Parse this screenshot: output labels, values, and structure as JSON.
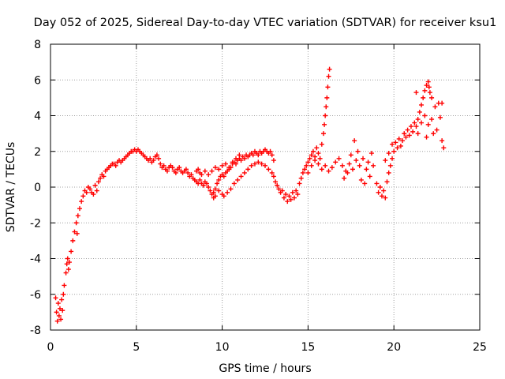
{
  "chart_data": {
    "type": "scatter",
    "title": "Day 052 of 2025, Sidereal Day-to-day VTEC variation (SDTVAR) for receiver ksu1",
    "xlabel": "GPS time / hours",
    "ylabel": "SDTVAR / TECUs",
    "xlim": [
      0,
      25
    ],
    "ylim": [
      -8,
      8
    ],
    "xticks": [
      "0",
      "5",
      "10",
      "15",
      "20",
      "25"
    ],
    "yticks": [
      "-8",
      "-6",
      "-4",
      "-2",
      "0",
      "2",
      "4",
      "6",
      "8"
    ],
    "grid": true,
    "marker": "+",
    "series": [
      {
        "name": "SDTVAR",
        "color": "#ff0000",
        "points": [
          [
            0.3,
            -6.2
          ],
          [
            0.35,
            -7.0
          ],
          [
            0.4,
            -7.5
          ],
          [
            0.45,
            -6.5
          ],
          [
            0.5,
            -7.2
          ],
          [
            0.55,
            -6.8
          ],
          [
            0.6,
            -7.4
          ],
          [
            0.65,
            -6.3
          ],
          [
            0.7,
            -6.9
          ],
          [
            0.75,
            -6.0
          ],
          [
            0.8,
            -5.5
          ],
          [
            0.9,
            -4.8
          ],
          [
            0.95,
            -4.3
          ],
          [
            1.0,
            -4.0
          ],
          [
            1.05,
            -4.6
          ],
          [
            1.1,
            -4.2
          ],
          [
            1.2,
            -3.6
          ],
          [
            1.3,
            -3.0
          ],
          [
            1.4,
            -2.5
          ],
          [
            1.5,
            -2.0
          ],
          [
            1.55,
            -2.6
          ],
          [
            1.6,
            -1.6
          ],
          [
            1.7,
            -1.2
          ],
          [
            1.8,
            -0.8
          ],
          [
            1.9,
            -0.5
          ],
          [
            2.0,
            -0.2
          ],
          [
            2.1,
            -0.3
          ],
          [
            2.2,
            0.0
          ],
          [
            2.3,
            -0.1
          ],
          [
            2.4,
            -0.3
          ],
          [
            2.5,
            -0.4
          ],
          [
            2.6,
            0.1
          ],
          [
            2.7,
            -0.2
          ],
          [
            2.8,
            0.3
          ],
          [
            2.9,
            0.5
          ],
          [
            3.0,
            0.7
          ],
          [
            3.1,
            0.6
          ],
          [
            3.2,
            0.9
          ],
          [
            3.3,
            1.0
          ],
          [
            3.4,
            1.1
          ],
          [
            3.5,
            1.2
          ],
          [
            3.6,
            1.3
          ],
          [
            3.7,
            1.3
          ],
          [
            3.8,
            1.2
          ],
          [
            3.9,
            1.4
          ],
          [
            4.0,
            1.5
          ],
          [
            4.1,
            1.4
          ],
          [
            4.2,
            1.5
          ],
          [
            4.3,
            1.6
          ],
          [
            4.4,
            1.7
          ],
          [
            4.5,
            1.8
          ],
          [
            4.6,
            1.9
          ],
          [
            4.7,
            2.0
          ],
          [
            4.8,
            2.0
          ],
          [
            4.9,
            2.1
          ],
          [
            5.0,
            2.0
          ],
          [
            5.1,
            2.1
          ],
          [
            5.2,
            2.0
          ],
          [
            5.3,
            1.9
          ],
          [
            5.4,
            1.8
          ],
          [
            5.5,
            1.7
          ],
          [
            5.6,
            1.6
          ],
          [
            5.7,
            1.5
          ],
          [
            5.8,
            1.6
          ],
          [
            5.9,
            1.4
          ],
          [
            6.0,
            1.5
          ],
          [
            6.1,
            1.7
          ],
          [
            6.2,
            1.8
          ],
          [
            6.3,
            1.6
          ],
          [
            6.4,
            1.3
          ],
          [
            6.5,
            1.1
          ],
          [
            6.6,
            1.2
          ],
          [
            6.7,
            1.0
          ],
          [
            6.8,
            0.9
          ],
          [
            6.9,
            1.1
          ],
          [
            7.0,
            1.2
          ],
          [
            7.1,
            1.1
          ],
          [
            7.2,
            0.9
          ],
          [
            7.3,
            0.8
          ],
          [
            7.4,
            1.0
          ],
          [
            7.5,
            1.1
          ],
          [
            7.6,
            0.9
          ],
          [
            7.7,
            0.8
          ],
          [
            7.8,
            0.9
          ],
          [
            7.9,
            1.0
          ],
          [
            8.0,
            0.8
          ],
          [
            8.1,
            0.6
          ],
          [
            8.2,
            0.7
          ],
          [
            8.3,
            0.5
          ],
          [
            8.4,
            0.4
          ],
          [
            8.5,
            0.3
          ],
          [
            8.6,
            0.2
          ],
          [
            8.7,
            0.4
          ],
          [
            8.8,
            0.2
          ],
          [
            8.9,
            0.1
          ],
          [
            9.0,
            0.3
          ],
          [
            9.1,
            0.2
          ],
          [
            9.2,
            0.0
          ],
          [
            9.3,
            -0.2
          ],
          [
            9.4,
            -0.4
          ],
          [
            9.5,
            -0.3
          ],
          [
            9.6,
            -0.1
          ],
          [
            9.7,
            0.2
          ],
          [
            9.8,
            0.4
          ],
          [
            9.9,
            0.6
          ],
          [
            10.0,
            0.7
          ],
          [
            10.1,
            0.6
          ],
          [
            10.2,
            0.8
          ],
          [
            10.3,
            0.9
          ],
          [
            10.4,
            1.0
          ],
          [
            10.5,
            1.1
          ],
          [
            10.6,
            1.3
          ],
          [
            10.7,
            1.4
          ],
          [
            10.8,
            1.3
          ],
          [
            10.9,
            1.5
          ],
          [
            11.0,
            1.6
          ],
          [
            11.1,
            1.5
          ],
          [
            11.2,
            1.7
          ],
          [
            11.3,
            1.6
          ],
          [
            11.4,
            1.8
          ],
          [
            11.5,
            1.7
          ],
          [
            11.6,
            1.8
          ],
          [
            11.7,
            1.9
          ],
          [
            11.8,
            1.8
          ],
          [
            11.9,
            2.0
          ],
          [
            12.0,
            1.9
          ],
          [
            12.1,
            1.8
          ],
          [
            12.2,
            2.0
          ],
          [
            12.3,
            1.9
          ],
          [
            12.4,
            2.0
          ],
          [
            12.5,
            2.1
          ],
          [
            12.6,
            2.0
          ],
          [
            12.7,
            1.9
          ],
          [
            12.8,
            2.0
          ],
          [
            12.9,
            1.8
          ],
          [
            13.0,
            1.5
          ],
          [
            9.5,
            -0.6
          ],
          [
            9.6,
            -0.5
          ],
          [
            9.8,
            -0.2
          ],
          [
            10.0,
            -0.4
          ],
          [
            10.1,
            -0.5
          ],
          [
            10.3,
            -0.3
          ],
          [
            10.5,
            -0.1
          ],
          [
            10.7,
            0.2
          ],
          [
            10.9,
            0.4
          ],
          [
            11.1,
            0.6
          ],
          [
            11.3,
            0.8
          ],
          [
            11.5,
            1.0
          ],
          [
            11.7,
            1.2
          ],
          [
            11.9,
            1.3
          ],
          [
            12.1,
            1.4
          ],
          [
            12.3,
            1.3
          ],
          [
            12.5,
            1.2
          ],
          [
            12.7,
            1.0
          ],
          [
            12.9,
            0.8
          ],
          [
            13.0,
            0.6
          ],
          [
            13.1,
            0.3
          ],
          [
            13.2,
            0.1
          ],
          [
            13.3,
            -0.1
          ],
          [
            13.4,
            -0.3
          ],
          [
            8.5,
            0.9
          ],
          [
            8.6,
            1.0
          ],
          [
            8.7,
            0.8
          ],
          [
            8.8,
            0.7
          ],
          [
            9.0,
            0.9
          ],
          [
            9.2,
            0.7
          ],
          [
            9.4,
            0.9
          ],
          [
            9.6,
            1.1
          ],
          [
            9.8,
            1.0
          ],
          [
            10.0,
            1.2
          ],
          [
            10.2,
            1.3
          ],
          [
            10.4,
            1.1
          ],
          [
            10.6,
            1.4
          ],
          [
            10.8,
            1.6
          ],
          [
            11.0,
            1.8
          ],
          [
            13.5,
            -0.2
          ],
          [
            13.6,
            -0.6
          ],
          [
            13.7,
            -0.4
          ],
          [
            13.8,
            -0.8
          ],
          [
            13.9,
            -0.5
          ],
          [
            14.0,
            -0.7
          ],
          [
            14.1,
            -0.3
          ],
          [
            14.2,
            -0.6
          ],
          [
            14.3,
            -0.2
          ],
          [
            14.4,
            -0.4
          ],
          [
            14.5,
            0.2
          ],
          [
            14.6,
            0.5
          ],
          [
            14.7,
            0.8
          ],
          [
            14.8,
            1.0
          ],
          [
            14.9,
            1.2
          ],
          [
            15.0,
            1.4
          ],
          [
            15.1,
            1.6
          ],
          [
            15.2,
            1.8
          ],
          [
            15.3,
            2.0
          ],
          [
            15.4,
            1.7
          ],
          [
            15.5,
            2.2
          ],
          [
            15.6,
            1.9
          ],
          [
            15.7,
            1.6
          ],
          [
            15.8,
            2.4
          ],
          [
            15.9,
            3.0
          ],
          [
            15.95,
            3.5
          ],
          [
            16.0,
            4.0
          ],
          [
            16.05,
            4.5
          ],
          [
            16.1,
            5.0
          ],
          [
            16.15,
            5.6
          ],
          [
            16.2,
            6.2
          ],
          [
            16.25,
            6.6
          ],
          [
            15.0,
            0.8
          ],
          [
            15.2,
            1.2
          ],
          [
            15.4,
            1.5
          ],
          [
            15.6,
            1.3
          ],
          [
            15.8,
            1.0
          ],
          [
            16.0,
            1.2
          ],
          [
            16.2,
            0.9
          ],
          [
            16.4,
            1.1
          ],
          [
            16.6,
            1.4
          ],
          [
            16.8,
            1.6
          ],
          [
            17.0,
            1.2
          ],
          [
            17.2,
            0.9
          ],
          [
            17.4,
            1.3
          ],
          [
            17.6,
            1.0
          ],
          [
            17.8,
            1.5
          ],
          [
            18.0,
            1.2
          ],
          [
            18.2,
            1.6
          ],
          [
            18.4,
            1.0
          ],
          [
            18.6,
            0.6
          ],
          [
            18.8,
            1.2
          ],
          [
            17.1,
            0.5
          ],
          [
            17.3,
            0.8
          ],
          [
            17.5,
            1.8
          ],
          [
            17.7,
            2.6
          ],
          [
            17.9,
            2.0
          ],
          [
            18.1,
            0.4
          ],
          [
            18.3,
            0.2
          ],
          [
            18.5,
            1.4
          ],
          [
            18.7,
            1.9
          ],
          [
            19.0,
            0.2
          ],
          [
            19.1,
            -0.3
          ],
          [
            19.2,
            0.0
          ],
          [
            19.3,
            -0.5
          ],
          [
            19.4,
            -0.2
          ],
          [
            19.5,
            -0.6
          ],
          [
            19.6,
            0.3
          ],
          [
            19.7,
            0.8
          ],
          [
            19.8,
            1.2
          ],
          [
            19.9,
            1.6
          ],
          [
            20.0,
            2.0
          ],
          [
            20.1,
            2.5
          ],
          [
            20.2,
            2.2
          ],
          [
            19.5,
            1.5
          ],
          [
            19.7,
            1.9
          ],
          [
            19.9,
            2.4
          ],
          [
            20.3,
            2.7
          ],
          [
            20.4,
            2.3
          ],
          [
            20.5,
            2.6
          ],
          [
            20.6,
            3.0
          ],
          [
            20.7,
            2.8
          ],
          [
            20.8,
            3.2
          ],
          [
            20.9,
            2.9
          ],
          [
            21.0,
            3.4
          ],
          [
            21.1,
            3.1
          ],
          [
            21.2,
            3.6
          ],
          [
            21.3,
            3.4
          ],
          [
            21.4,
            3.8
          ],
          [
            21.5,
            4.2
          ],
          [
            21.6,
            4.6
          ],
          [
            21.7,
            5.0
          ],
          [
            21.8,
            5.4
          ],
          [
            21.9,
            5.7
          ],
          [
            22.0,
            5.9
          ],
          [
            22.05,
            5.6
          ],
          [
            22.1,
            5.3
          ],
          [
            22.2,
            5.0
          ],
          [
            21.3,
            5.3
          ],
          [
            21.4,
            3.0
          ],
          [
            21.6,
            3.6
          ],
          [
            21.8,
            4.0
          ],
          [
            22.0,
            3.5
          ],
          [
            22.2,
            3.8
          ],
          [
            22.4,
            4.5
          ],
          [
            22.5,
            3.2
          ],
          [
            22.6,
            4.7
          ],
          [
            22.7,
            3.9
          ],
          [
            22.8,
            2.6
          ],
          [
            22.9,
            2.2
          ],
          [
            22.8,
            4.7
          ],
          [
            22.3,
            3.0
          ],
          [
            21.9,
            2.8
          ]
        ]
      }
    ]
  }
}
